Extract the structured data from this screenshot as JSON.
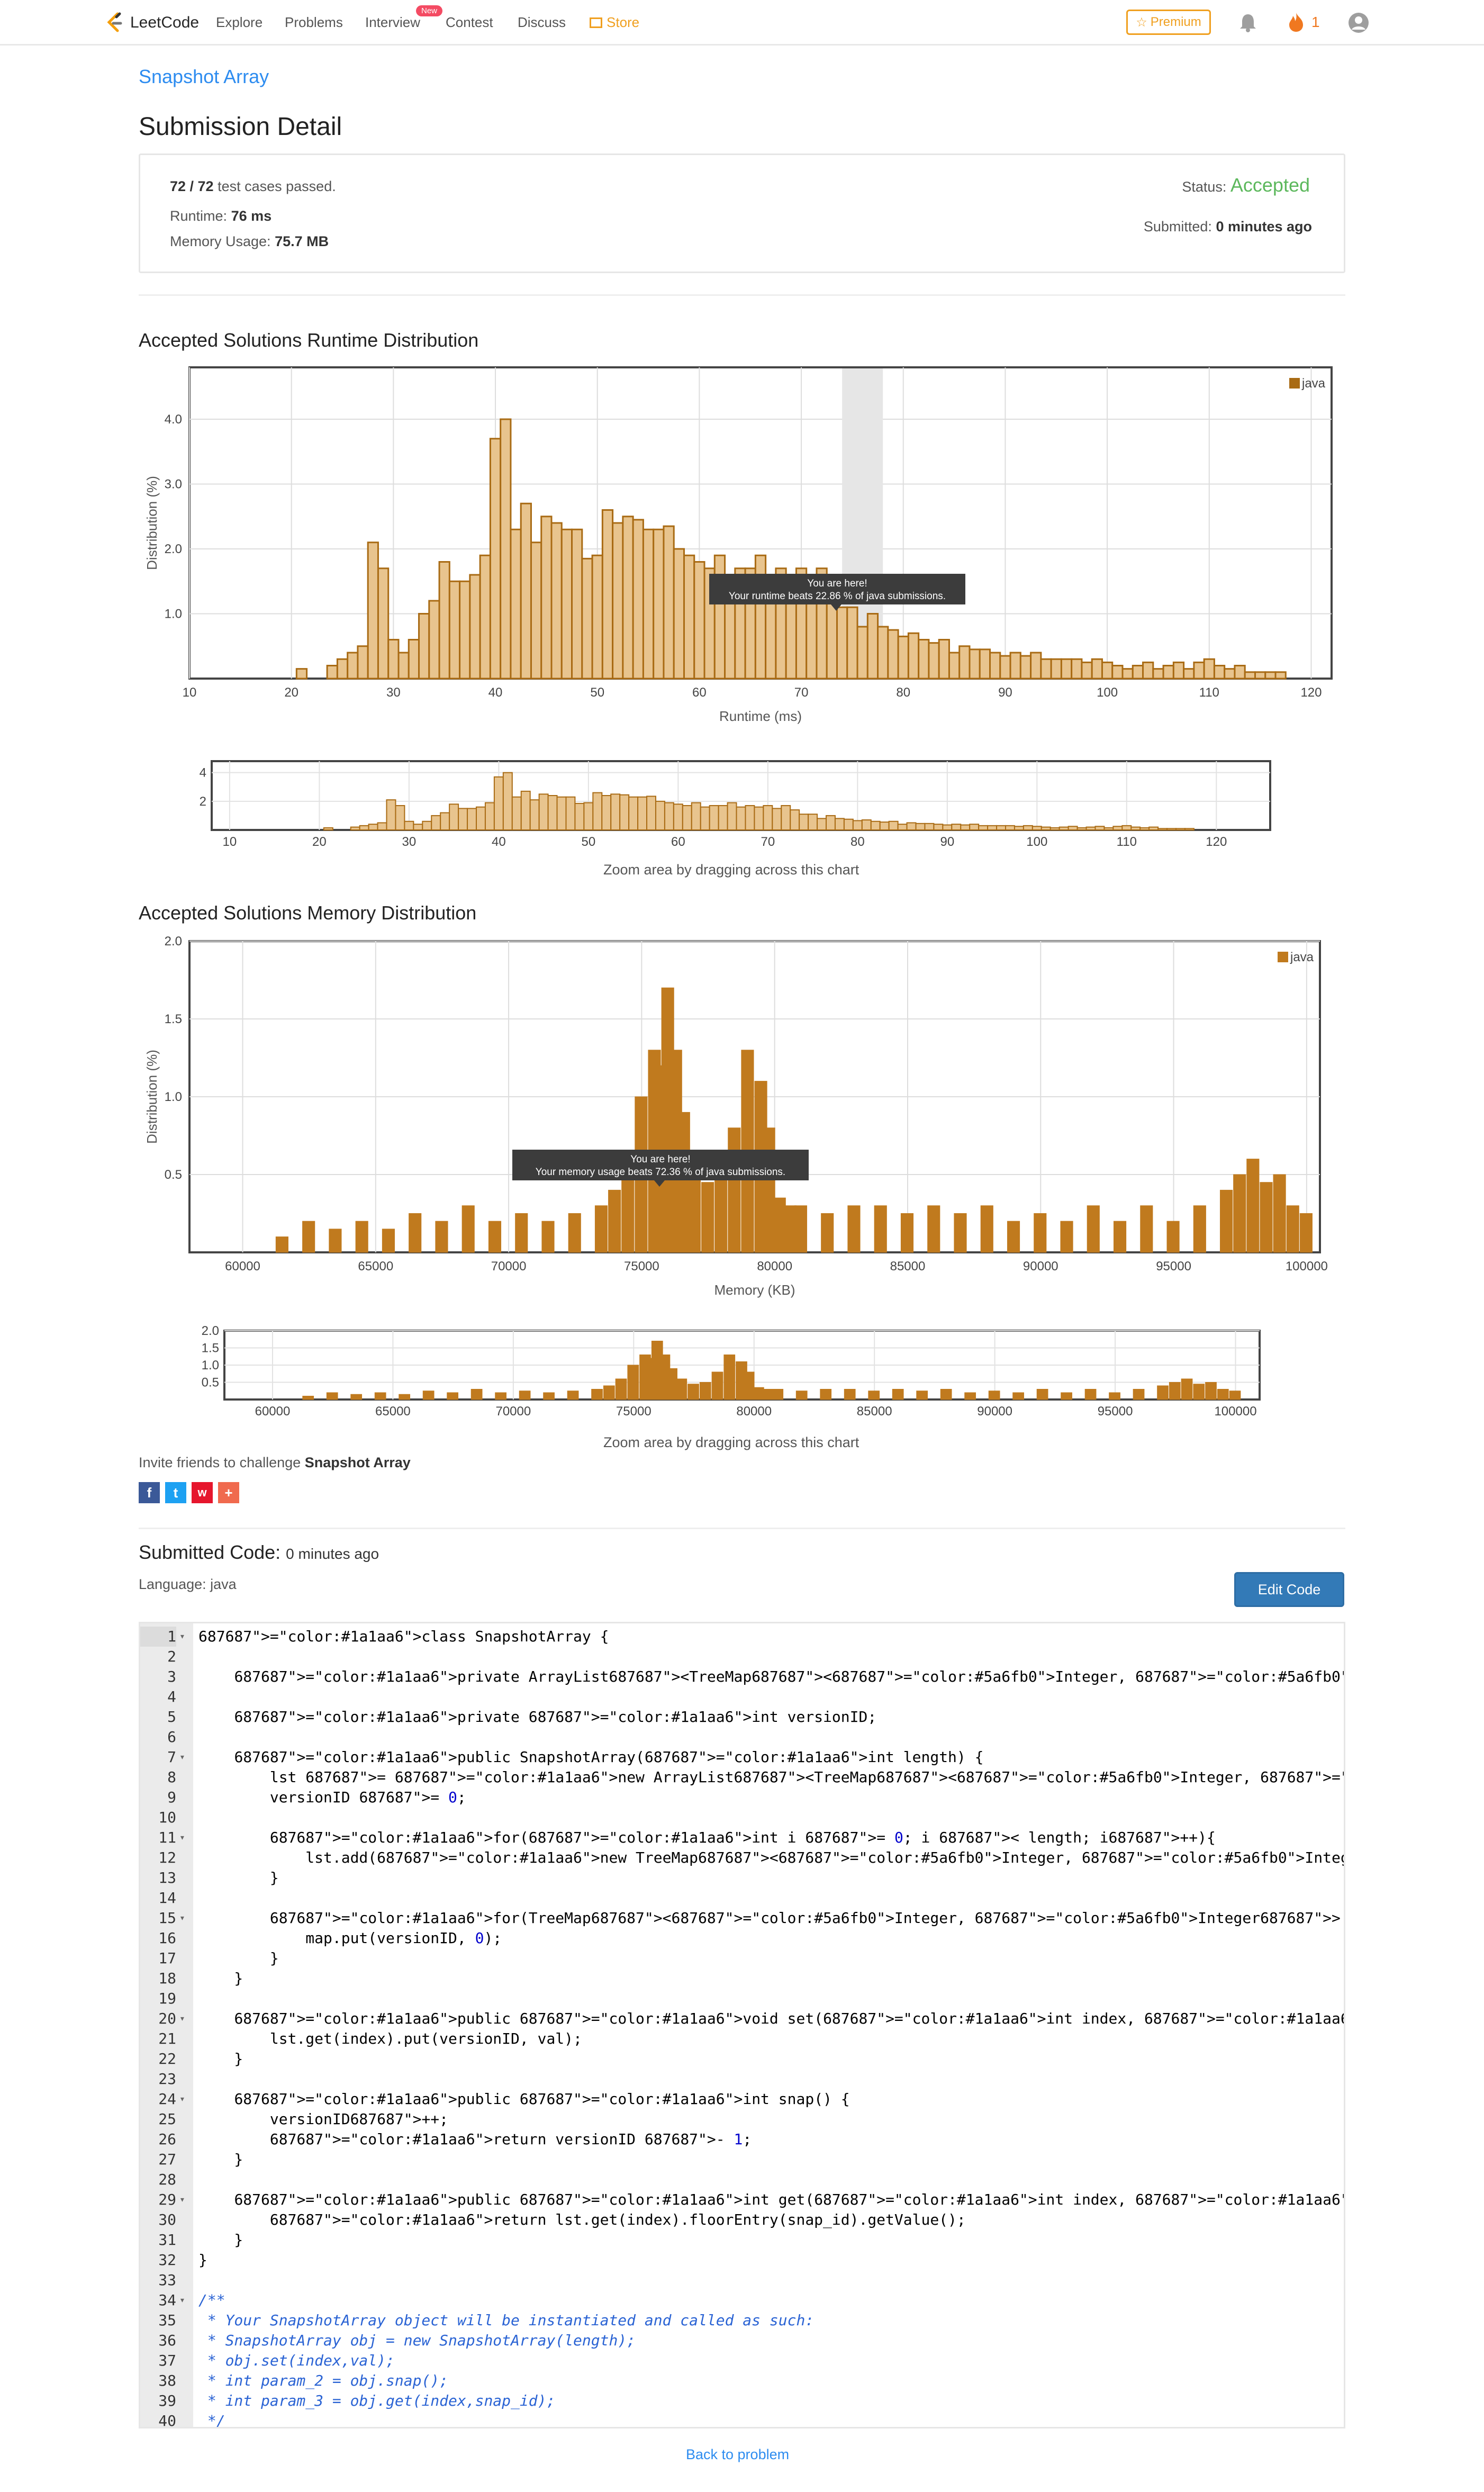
{
  "nav": {
    "logo": "LeetCode",
    "links": [
      "Explore",
      "Problems",
      "Interview",
      "Contest",
      "Discuss",
      "Store"
    ],
    "new_badge": "New",
    "premium": "Premium",
    "fire_count": "1"
  },
  "problem": {
    "title": "Snapshot Array"
  },
  "page_title": "Submission Detail",
  "result": {
    "cases_passed": "72 / 72",
    "cases_suffix": "test cases passed.",
    "runtime_label": "Runtime:",
    "runtime_value": "76 ms",
    "memory_label": "Memory Usage:",
    "memory_value": "75.7 MB",
    "status_label": "Status:",
    "status_value": "Accepted",
    "submitted_label": "Submitted:",
    "submitted_value": "0 minutes ago"
  },
  "runtime_section": {
    "title": "Accepted Solutions Runtime Distribution"
  },
  "memory_section": {
    "title": "Accepted Solutions Memory Distribution"
  },
  "zoom_hint": "Zoom area by dragging across this chart",
  "invite": {
    "prefix": "Invite friends to challenge",
    "problem": "Snapshot Array"
  },
  "submitted_code": {
    "label": "Submitted Code:",
    "time": "0 minutes ago",
    "language": "Language: java"
  },
  "edit_code": "Edit Code",
  "back_link": "Back to problem",
  "colors": {
    "bar_fill": "#e8c48e",
    "bar_stroke": "#a96b14",
    "mem_bar": "#c07a1e",
    "accent": "#2d8cf0",
    "accepted": "#5cb85c"
  },
  "chart_data": [
    {
      "type": "bar",
      "title": "",
      "xlabel": "Runtime (ms)",
      "ylabel": "Distribution (%)",
      "legend": "java",
      "legend_position": "top-right",
      "grid": true,
      "xlim": [
        10,
        122
      ],
      "ylim": [
        0,
        4.8
      ],
      "x_ticks": [
        10,
        20,
        30,
        40,
        50,
        60,
        70,
        80,
        90,
        100,
        110,
        120
      ],
      "y_ticks": [
        "1.0",
        "2.0",
        "3.0",
        "4.0"
      ],
      "highlight_range": [
        74,
        78
      ],
      "tooltip": {
        "title": "You are here!",
        "text": "Your runtime beats 22.86 % of java submissions."
      },
      "series": [
        {
          "name": "java",
          "x": [
            21,
            24,
            25,
            26,
            27,
            28,
            29,
            30,
            31,
            32,
            33,
            34,
            35,
            36,
            37,
            38,
            39,
            40,
            41,
            42,
            43,
            44,
            45,
            46,
            47,
            48,
            49,
            50,
            51,
            52,
            53,
            54,
            55,
            56,
            57,
            58,
            59,
            60,
            61,
            62,
            63,
            64,
            65,
            66,
            67,
            68,
            69,
            70,
            71,
            72,
            73,
            74,
            75,
            76,
            77,
            78,
            79,
            80,
            81,
            82,
            83,
            84,
            85,
            86,
            87,
            88,
            89,
            90,
            91,
            92,
            93,
            94,
            95,
            96,
            97,
            98,
            99,
            100,
            101,
            102,
            103,
            104,
            105,
            106,
            107,
            108,
            109,
            110,
            111,
            112,
            113,
            114,
            115,
            116,
            117
          ],
          "values": [
            0.15,
            0.2,
            0.3,
            0.4,
            0.5,
            2.1,
            1.7,
            0.6,
            0.4,
            0.6,
            1.0,
            1.2,
            1.8,
            1.5,
            1.5,
            1.6,
            1.9,
            3.7,
            4.0,
            2.3,
            2.7,
            2.1,
            2.5,
            2.4,
            2.3,
            2.3,
            1.85,
            1.9,
            2.6,
            2.4,
            2.5,
            2.45,
            2.3,
            2.3,
            2.35,
            2.0,
            1.9,
            1.8,
            1.7,
            1.9,
            1.6,
            1.7,
            1.7,
            1.9,
            1.6,
            1.7,
            1.6,
            1.7,
            1.5,
            1.7,
            1.4,
            1.1,
            1.1,
            0.8,
            1.0,
            0.8,
            0.75,
            0.65,
            0.7,
            0.6,
            0.55,
            0.6,
            0.4,
            0.5,
            0.45,
            0.45,
            0.4,
            0.35,
            0.4,
            0.35,
            0.4,
            0.3,
            0.3,
            0.3,
            0.3,
            0.25,
            0.3,
            0.25,
            0.2,
            0.15,
            0.2,
            0.25,
            0.15,
            0.2,
            0.25,
            0.15,
            0.25,
            0.3,
            0.2,
            0.15,
            0.2,
            0.1,
            0.1,
            0.1,
            0.1
          ]
        }
      ]
    },
    {
      "type": "bar",
      "title": "",
      "xlabel": "Memory (KB)",
      "ylabel": "Distribution (%)",
      "legend": "java",
      "legend_position": "top-right",
      "grid": true,
      "xlim": [
        58000,
        100500
      ],
      "ylim": [
        0,
        2.0
      ],
      "x_ticks": [
        60000,
        65000,
        70000,
        75000,
        80000,
        85000,
        90000,
        95000,
        100000
      ],
      "y_ticks": [
        "0.5",
        "1.0",
        "1.5",
        "2.0"
      ],
      "tooltip": {
        "title": "You are here!",
        "text": "Your memory usage beats 72.36 % of java submissions."
      },
      "series": [
        {
          "name": "java",
          "x": [
            61500,
            62500,
            63500,
            64500,
            65500,
            66500,
            67500,
            68500,
            69500,
            70500,
            71500,
            72500,
            73500,
            74000,
            74500,
            75000,
            75500,
            75800,
            76000,
            76300,
            76600,
            77000,
            77500,
            78000,
            78500,
            79000,
            79500,
            79800,
            80200,
            80600,
            81000,
            82000,
            83000,
            84000,
            85000,
            86000,
            87000,
            88000,
            89000,
            90000,
            91000,
            92000,
            93000,
            94000,
            95000,
            96000,
            97000,
            97500,
            98000,
            98500,
            99000,
            99500,
            100000
          ],
          "values": [
            0.1,
            0.2,
            0.15,
            0.2,
            0.15,
            0.25,
            0.2,
            0.3,
            0.2,
            0.25,
            0.2,
            0.25,
            0.3,
            0.4,
            0.6,
            1.0,
            1.3,
            1.2,
            1.7,
            1.3,
            0.9,
            0.6,
            0.45,
            0.5,
            0.8,
            1.3,
            1.1,
            0.8,
            0.35,
            0.3,
            0.3,
            0.25,
            0.3,
            0.3,
            0.25,
            0.3,
            0.25,
            0.3,
            0.2,
            0.25,
            0.2,
            0.3,
            0.2,
            0.3,
            0.2,
            0.3,
            0.4,
            0.5,
            0.6,
            0.45,
            0.5,
            0.3,
            0.25
          ]
        }
      ]
    }
  ],
  "mini_charts": {
    "runtime_y_ticks": [
      "2",
      "4"
    ],
    "memory_y_ticks": [
      "0.5",
      "1.0",
      "1.5",
      "2.0"
    ]
  },
  "code": {
    "lines": [
      "class SnapshotArray {",
      "",
      "    private ArrayList<TreeMap<Integer, Integer>> lst;",
      "",
      "    private int versionID;",
      "",
      "    public SnapshotArray(int length) {",
      "        lst = new ArrayList<TreeMap<Integer, Integer>>(length);",
      "        versionID = 0;",
      "",
      "        for(int i = 0; i < length; i++){",
      "            lst.add(new TreeMap<Integer, Integer>());",
      "        }",
      "",
      "        for(TreeMap<Integer, Integer> map: lst){",
      "            map.put(versionID, 0);",
      "        }",
      "    }",
      "",
      "    public void set(int index, int val) {",
      "        lst.get(index).put(versionID, val);",
      "    }",
      "",
      "    public int snap() {",
      "        versionID++;",
      "        return versionID - 1;",
      "    }",
      "",
      "    public int get(int index, int snap_id) {",
      "        return lst.get(index).floorEntry(snap_id).getValue();",
      "    }",
      "}",
      "",
      "/**",
      " * Your SnapshotArray object will be instantiated and called as such:",
      " * SnapshotArray obj = new SnapshotArray(length);",
      " * obj.set(index,val);",
      " * int param_2 = obj.snap();",
      " * int param_3 = obj.get(index,snap_id);",
      " */"
    ],
    "fold_lines": [
      1,
      7,
      11,
      15,
      20,
      24,
      29,
      34
    ]
  }
}
